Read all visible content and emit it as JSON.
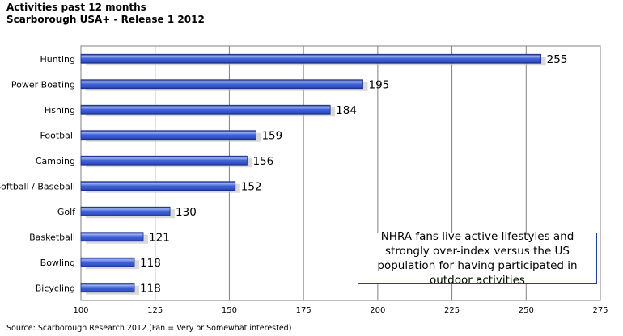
{
  "header": {
    "title": "Activities past 12 months",
    "subtitle": "Scarborough USA+ - Release 1 2012"
  },
  "footer": {
    "source": "Source: Scarborough Research 2012 (Fan = Very or Somewhat interested)"
  },
  "callout": {
    "text": "NHRA fans live active lifestyles and strongly over-index versus the US population for having participated in outdoor activities"
  },
  "colors": {
    "bar_fill": "#3d5fd8",
    "bar_highlight": "#9bb0f2",
    "bar_edge": "#1b2f86",
    "grid": "#808080",
    "callout_border": "#1f3f9a"
  },
  "chart_data": {
    "type": "bar",
    "orientation": "horizontal",
    "categories": [
      "Hunting",
      "Power Boating",
      "Fishing",
      "Football",
      "Camping",
      "Softball / Baseball",
      "Golf",
      "Basketball",
      "Bowling",
      "Bicycling"
    ],
    "values": [
      255,
      195,
      184,
      159,
      156,
      152,
      130,
      121,
      118,
      118
    ],
    "xlim": [
      100,
      275
    ],
    "xticks": [
      100,
      125,
      150,
      175,
      200,
      225,
      250,
      275
    ],
    "grid": true,
    "data_labels": true,
    "legend": "none"
  }
}
